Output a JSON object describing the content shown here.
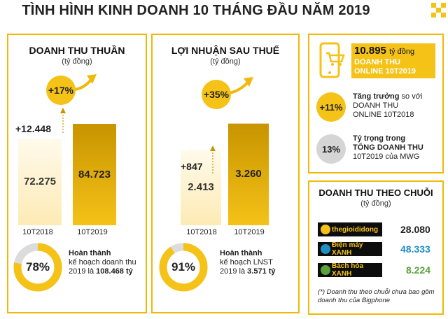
{
  "page_title": "TÌNH HÌNH KINH DOANH 10 THÁNG ĐẦU NĂM 2019",
  "colors": {
    "accent": "#f5c218",
    "dark_gold": "#c89400",
    "light": "#fff3d2",
    "blue": "#1f8fc4",
    "green": "#5aa23a"
  },
  "chart_data": [
    {
      "type": "bar",
      "title": "DOANH THU THUẦN",
      "unit": "(tỷ đồng)",
      "categories": [
        "10T2018",
        "10T2019"
      ],
      "values": [
        72.275,
        84.723
      ],
      "value_labels": [
        "72.275",
        "84.723"
      ],
      "difference_label": "+12.448",
      "growth_label": "+17%",
      "ylim": [
        0,
        90
      ]
    },
    {
      "type": "bar",
      "title": "LỢI NHUẬN SAU THUẾ",
      "unit": "(tỷ đồng)",
      "categories": [
        "10T2018",
        "10T2019"
      ],
      "values": [
        2.413,
        3.26
      ],
      "value_labels": [
        "2.413",
        "3.260"
      ],
      "difference_label": "+847",
      "growth_label": "+35%",
      "ylim": [
        0,
        4.8
      ]
    },
    {
      "type": "table",
      "title": "DOANH THU THEO CHUỖI",
      "unit": "(tỷ đồng)",
      "rows": [
        {
          "brand": "thegioididong",
          "value": "28.080",
          "value_color": "#222222",
          "icon_color": "#f5c218"
        },
        {
          "brand": "Điện máy XANH",
          "value": "48.333",
          "value_color": "#1f8fc4",
          "icon_color": "#1f8fc4"
        },
        {
          "brand": "Bách hóa XANH",
          "value": "8.224",
          "value_color": "#5aa23a",
          "icon_color": "#5aa23a"
        }
      ],
      "footnote_line1": "(*) Doanh thu theo chuỗi chưa bao gồm",
      "footnote_line2": "doanh thu của Bigphone"
    }
  ],
  "progress": {
    "revenue": {
      "percent": 78,
      "label": "78%",
      "line1": "Hoàn thành",
      "line2": "kế hoạch doanh thu",
      "line3": "2019 là ",
      "target": "108.468 tỷ"
    },
    "profit": {
      "percent": 91,
      "label": "91%",
      "line1": "Hoàn thành",
      "line2": "kế hoạch LNST",
      "line3": "2019 là ",
      "target": "3.571 tỷ"
    }
  },
  "online": {
    "amount": "10.895",
    "amount_unit": "tỷ đồng",
    "line1": "DOANH THU",
    "line2": "ONLINE 10T2019",
    "growth": {
      "label": "+11%",
      "percent": 11,
      "line1_bold": "Tăng trưởng",
      "line1_rest": " so với",
      "line2": "DOANH THU",
      "line3": "ONLINE 10T2018"
    },
    "share": {
      "label": "13%",
      "percent": 13,
      "line1": "Tỷ trọng trong",
      "line2": "TỔNG DOANH THU",
      "line3": "10T2019 của MWG"
    }
  }
}
